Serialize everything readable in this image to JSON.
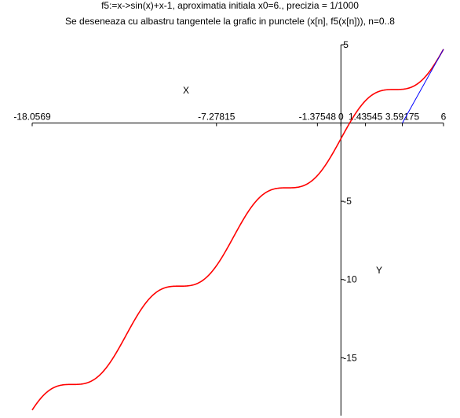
{
  "chart_data": {
    "type": "line",
    "title": "f5:=x->sin(x)+x-1, aproximatia initiala x0=6.,  precizia = 1/1000",
    "subtitle": "Se deseneaza cu albastru tangentele la grafic in punctele (x[n], f5(x[n])), n=0..8",
    "xlabel": "X",
    "ylabel": "Y",
    "xlim": [
      -18.0569,
      6
    ],
    "ylim": [
      -18.5,
      5
    ],
    "x_ticks": [
      {
        "value": -18.0569,
        "label": "-18.0569"
      },
      {
        "value": -7.27815,
        "label": "-7.27815"
      },
      {
        "value": -1.37548,
        "label": "-1.37548"
      },
      {
        "value": 0,
        "label": "0"
      },
      {
        "value": 1.43545,
        "label": "1.43545"
      },
      {
        "value": 3.59175,
        "label": "3.59175"
      },
      {
        "value": 6,
        "label": "6"
      }
    ],
    "y_ticks": [
      {
        "value": 5,
        "label": "5"
      },
      {
        "value": -5,
        "label": "-5"
      },
      {
        "value": -10,
        "label": "-10"
      },
      {
        "value": -15,
        "label": "-15"
      }
    ],
    "series": [
      {
        "kind": "function",
        "expression": "sin(x)+x-1",
        "color": "#ff0000",
        "x_range": [
          -18.0569,
          6
        ]
      },
      {
        "kind": "tangent",
        "color": "#0000ff",
        "points": [
          [
            3.59175,
            0
          ],
          [
            6,
            4.7206
          ]
        ]
      }
    ],
    "grid": false,
    "legend": "none"
  }
}
